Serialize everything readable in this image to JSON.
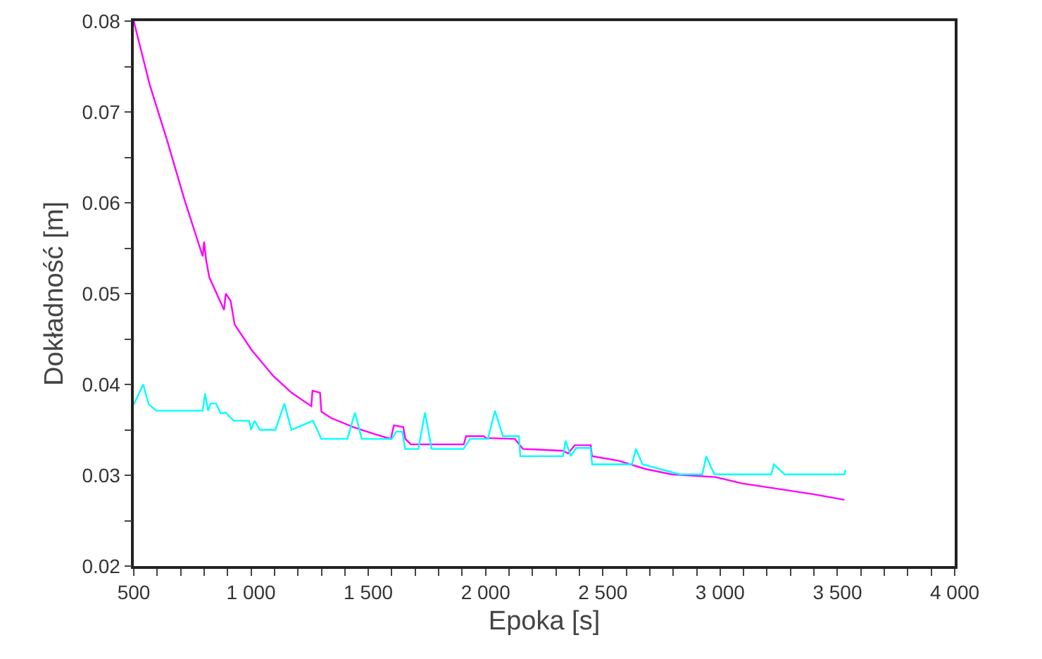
{
  "chart_data": {
    "type": "line",
    "xlabel": "Epoka [s]",
    "ylabel": "Dokładność [m]",
    "xlim": [
      500,
      4000
    ],
    "ylim": [
      0.02,
      0.08
    ],
    "xticks": [
      500,
      {
        "value": 600,
        "label": null
      },
      {
        "value": 700,
        "label": null
      },
      {
        "value": 800,
        "label": null
      },
      {
        "value": 900,
        "label": null
      },
      {
        "value": 1000,
        "label": "1 000"
      },
      {
        "value": 1100,
        "label": null
      },
      {
        "value": 1200,
        "label": null
      },
      {
        "value": 1300,
        "label": null
      },
      {
        "value": 1400,
        "label": null
      },
      {
        "value": 1500,
        "label": "1 500"
      },
      {
        "value": 1600,
        "label": null
      },
      {
        "value": 1700,
        "label": null
      },
      {
        "value": 1800,
        "label": null
      },
      {
        "value": 1900,
        "label": null
      },
      {
        "value": 2000,
        "label": "2 000"
      },
      {
        "value": 2100,
        "label": null
      },
      {
        "value": 2200,
        "label": null
      },
      {
        "value": 2300,
        "label": null
      },
      {
        "value": 2400,
        "label": null
      },
      {
        "value": 2500,
        "label": "2 500"
      },
      {
        "value": 2600,
        "label": null
      },
      {
        "value": 2700,
        "label": null
      },
      {
        "value": 2800,
        "label": null
      },
      {
        "value": 2900,
        "label": null
      },
      {
        "value": 3000,
        "label": "3 000"
      },
      {
        "value": 3100,
        "label": null
      },
      {
        "value": 3200,
        "label": null
      },
      {
        "value": 3300,
        "label": null
      },
      {
        "value": 3400,
        "label": null
      },
      {
        "value": 3500,
        "label": "3 500"
      },
      {
        "value": 3600,
        "label": null
      },
      {
        "value": 3700,
        "label": null
      },
      {
        "value": 3800,
        "label": null
      },
      {
        "value": 3900,
        "label": null
      },
      {
        "value": 4000,
        "label": "4 000"
      }
    ],
    "yticks": [
      0.02,
      {
        "value": 0.025,
        "label": null
      },
      0.03,
      {
        "value": 0.035,
        "label": null
      },
      0.04,
      {
        "value": 0.045,
        "label": null
      },
      0.05,
      {
        "value": 0.055,
        "label": null
      },
      0.06,
      {
        "value": 0.065,
        "label": null
      },
      0.07,
      {
        "value": 0.075,
        "label": null
      },
      0.08
    ],
    "grid": false,
    "marker": "none",
    "line_style": "solid",
    "series": [
      {
        "color": "#ff00ff",
        "x": [
          500,
          568,
          643,
          719,
          794,
          800,
          809,
          822,
          885,
          892,
          913,
          930,
          1002,
          1096,
          1172,
          1257,
          1262,
          1294,
          1300,
          1342,
          1436,
          1530,
          1596,
          1609,
          1649,
          1658,
          1681,
          1907,
          1917,
          1992,
          2002,
          2125,
          2159,
          2330,
          2352,
          2380,
          2448,
          2454,
          2567,
          2680,
          2793,
          2980,
          3094,
          3247,
          3400,
          3530
        ],
        "values": [
          0.08,
          0.073,
          0.0668,
          0.0601,
          0.0541,
          0.0557,
          0.0536,
          0.0518,
          0.0482,
          0.05,
          0.0492,
          0.0466,
          0.0438,
          0.0409,
          0.0391,
          0.0376,
          0.0393,
          0.0391,
          0.037,
          0.0363,
          0.0353,
          0.0345,
          0.034,
          0.0355,
          0.0353,
          0.034,
          0.0334,
          0.0334,
          0.0343,
          0.0343,
          0.0341,
          0.034,
          0.0329,
          0.0327,
          0.0324,
          0.0333,
          0.0333,
          0.0321,
          0.0316,
          0.0307,
          0.0301,
          0.0298,
          0.0291,
          0.0285,
          0.0279,
          0.0273
        ]
      },
      {
        "color": "#00ffff",
        "x": [
          500,
          540,
          564,
          596,
          794,
          804,
          817,
          828,
          851,
          870,
          892,
          926,
          992,
          1000,
          1015,
          1038,
          1104,
          1142,
          1172,
          1264,
          1300,
          1411,
          1443,
          1472,
          1600,
          1619,
          1645,
          1657,
          1713,
          1742,
          1770,
          1906,
          1934,
          2010,
          2040,
          2074,
          2142,
          2148,
          2330,
          2341,
          2363,
          2386,
          2448,
          2454,
          2624,
          2641,
          2669,
          2828,
          2924,
          2941,
          2975,
          3218,
          3229,
          3275,
          3530,
          3535
        ],
        "values": [
          0.0378,
          0.04,
          0.0378,
          0.0371,
          0.0371,
          0.039,
          0.0371,
          0.0379,
          0.0379,
          0.0368,
          0.0369,
          0.036,
          0.036,
          0.035,
          0.036,
          0.035,
          0.035,
          0.0379,
          0.035,
          0.036,
          0.034,
          0.034,
          0.0369,
          0.034,
          0.034,
          0.0348,
          0.0348,
          0.0329,
          0.0329,
          0.0369,
          0.0329,
          0.0329,
          0.034,
          0.034,
          0.0371,
          0.0343,
          0.0343,
          0.0321,
          0.0321,
          0.0338,
          0.0321,
          0.033,
          0.033,
          0.0312,
          0.0312,
          0.0329,
          0.0312,
          0.0301,
          0.0301,
          0.0321,
          0.0301,
          0.0301,
          0.0312,
          0.0301,
          0.0301,
          0.0306
        ]
      }
    ]
  }
}
